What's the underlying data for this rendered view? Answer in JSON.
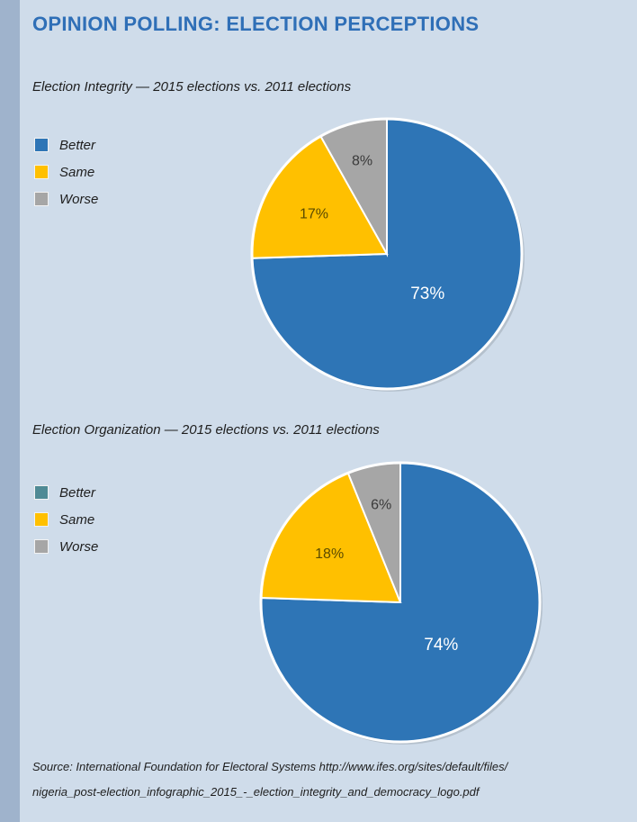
{
  "title": "OPINION POLLING: ELECTION PERCEPTIONS",
  "colors": {
    "better": "#2e75b6",
    "better_alt": "#4f8a95",
    "same": "#ffc000",
    "worse": "#a6a6a6",
    "title": "#2f6fb7"
  },
  "chart_data": [
    {
      "type": "pie",
      "title": "Election Integrity — 2015 elections vs. 2011 elections",
      "legend": [
        "Better",
        "Same",
        "Worse"
      ],
      "slices": [
        {
          "label": "Better",
          "value": 73,
          "display": "73%",
          "color": "#2e75b6"
        },
        {
          "label": "Same",
          "value": 17,
          "display": "17%",
          "color": "#ffc000"
        },
        {
          "label": "Worse",
          "value": 8,
          "display": "8%",
          "color": "#a6a6a6"
        }
      ]
    },
    {
      "type": "pie",
      "title": "Election Organization — 2015 elections vs. 2011 elections",
      "legend": [
        "Better",
        "Same",
        "Worse"
      ],
      "legend_colors": [
        "#4f8a95",
        "#ffc000",
        "#a6a6a6"
      ],
      "slices": [
        {
          "label": "Better",
          "value": 74,
          "display": "74%",
          "color": "#2e75b6"
        },
        {
          "label": "Same",
          "value": 18,
          "display": "18%",
          "color": "#ffc000"
        },
        {
          "label": "Worse",
          "value": 6,
          "display": "6%",
          "color": "#a6a6a6"
        }
      ]
    }
  ],
  "source": {
    "line1": "Source: International Foundation for Electoral Systems http://www.ifes.org/sites/default/files/",
    "line2": "nigeria_post-election_infographic_2015_-_election_integrity_and_democracy_logo.pdf"
  }
}
